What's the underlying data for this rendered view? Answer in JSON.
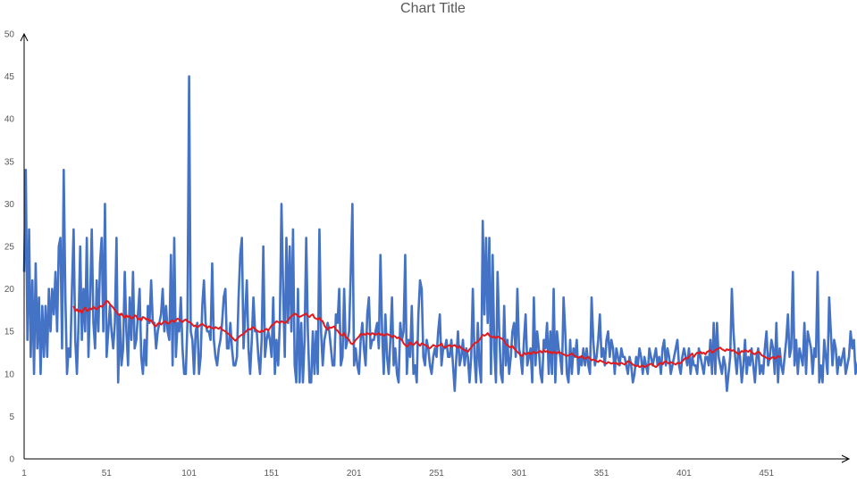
{
  "chart_data": {
    "type": "line",
    "title": "Chart Title",
    "xlabel": "",
    "ylabel": "",
    "xlim": [
      1,
      501
    ],
    "ylim": [
      0,
      50
    ],
    "x_ticks": [
      "1",
      "51",
      "101",
      "151",
      "201",
      "251",
      "301",
      "351",
      "401",
      "451"
    ],
    "y_ticks": [
      "0",
      "5",
      "10",
      "15",
      "20",
      "25",
      "30",
      "35",
      "40",
      "45",
      "50"
    ],
    "grid": false,
    "legend": "none",
    "colors": {
      "series": "#4472C4",
      "trend": "#E31A1C",
      "axis": "#000000",
      "text": "#595959"
    },
    "series": [
      {
        "values": [
          22,
          34,
          14,
          27,
          12,
          21,
          10,
          23,
          13,
          19,
          10,
          18,
          12,
          18,
          12,
          20,
          15,
          20,
          17,
          22,
          15,
          25,
          26,
          13,
          34,
          19,
          10,
          13,
          12,
          20,
          27,
          14,
          10,
          16,
          25,
          14,
          20,
          15,
          26,
          12,
          19,
          27,
          16,
          13,
          21,
          15,
          23,
          26,
          15,
          30,
          12,
          15,
          18,
          15,
          13,
          16,
          26,
          9,
          17,
          11,
          13,
          22,
          15,
          11,
          19,
          14,
          22,
          13,
          14,
          17,
          20,
          12,
          10,
          14,
          11,
          18,
          16,
          21,
          16,
          16,
          13,
          15,
          16,
          17,
          20,
          15,
          18,
          15,
          14,
          24,
          11,
          26,
          12,
          16,
          15,
          19,
          13,
          10,
          10,
          16,
          45,
          15,
          14,
          10,
          15,
          16,
          10,
          12,
          18,
          21,
          16,
          15,
          15,
          14,
          23,
          14,
          12,
          11,
          13,
          14,
          16,
          19,
          20,
          13,
          13,
          16,
          13,
          11,
          11,
          12,
          19,
          24,
          26,
          13,
          17,
          21,
          13,
          10,
          14,
          19,
          15,
          15,
          12,
          10,
          14,
          25,
          12,
          14,
          15,
          14,
          12,
          19,
          10,
          14,
          11,
          16,
          30,
          20,
          12,
          26,
          16,
          25,
          15,
          27,
          11,
          9,
          20,
          9,
          16,
          9,
          14,
          26,
          15,
          9,
          9,
          15,
          10,
          15,
          10,
          27,
          15,
          11,
          14,
          15,
          16,
          15,
          13,
          11,
          11,
          17,
          16,
          20,
          11,
          12,
          20,
          13,
          14,
          15,
          22,
          30,
          11,
          13,
          11,
          10,
          14,
          16,
          13,
          11,
          17,
          19,
          13,
          14,
          14,
          15,
          16,
          13,
          24,
          15,
          10,
          17,
          12,
          10,
          14,
          19,
          11,
          13,
          10,
          9,
          16,
          14,
          15,
          24,
          10,
          14,
          12,
          18,
          10,
          11,
          9,
          17,
          21,
          20,
          12,
          11,
          14,
          13,
          11,
          10,
          12,
          13,
          12,
          15,
          17,
          11,
          13,
          13,
          14,
          12,
          12,
          14,
          11,
          8,
          12,
          15,
          11,
          12,
          14,
          11,
          13,
          12,
          9,
          12,
          20,
          12,
          9,
          16,
          11,
          9,
          28,
          17,
          26,
          16,
          26,
          10,
          24,
          13,
          9,
          22,
          15,
          10,
          9,
          18,
          11,
          14,
          10,
          12,
          15,
          16,
          12,
          20,
          13,
          12,
          10,
          14,
          17,
          11,
          12,
          13,
          9,
          19,
          11,
          15,
          13,
          10,
          9,
          14,
          13,
          16,
          10,
          15,
          10,
          20,
          9,
          15,
          13,
          12,
          10,
          19,
          15,
          10,
          9,
          14,
          10,
          13,
          12,
          14,
          10,
          12,
          11,
          13,
          11,
          13,
          11,
          10,
          19,
          14,
          11,
          12,
          14,
          17,
          12,
          13,
          11,
          14,
          15,
          12,
          14,
          13,
          10,
          13,
          12,
          11,
          13,
          12,
          12,
          11,
          10,
          12,
          11,
          9,
          10,
          12,
          11,
          13,
          12,
          10,
          12,
          11,
          10,
          13,
          12,
          11,
          12,
          13,
          11,
          12,
          10,
          13,
          14,
          11,
          13,
          12,
          10,
          11,
          12,
          13,
          14,
          11,
          10,
          12,
          13,
          12,
          11,
          13,
          10,
          12,
          11,
          11,
          10,
          13,
          12,
          11,
          10,
          12,
          12,
          11,
          14,
          10,
          16,
          10,
          16,
          12,
          11,
          10,
          12,
          11,
          8,
          10,
          12,
          20,
          15,
          12,
          10,
          13,
          12,
          9,
          11,
          14,
          10,
          12,
          11,
          13,
          11,
          9,
          12,
          13,
          10,
          11,
          10,
          13,
          15,
          11,
          12,
          14,
          13,
          10,
          16,
          9,
          13,
          11,
          10,
          12,
          14,
          17,
          12,
          13,
          22,
          11,
          14,
          10,
          13,
          12,
          11,
          16,
          10,
          15,
          14,
          13,
          10,
          13,
          12,
          22,
          9,
          11,
          9,
          14,
          12,
          10,
          19,
          15,
          11,
          14,
          13,
          10,
          12,
          11,
          12,
          13,
          10,
          11,
          12,
          15,
          13,
          14,
          10,
          11,
          12,
          8,
          9,
          14,
          11,
          12,
          10,
          19,
          11,
          12,
          13,
          10,
          13,
          14,
          19,
          12,
          13,
          12,
          14,
          11,
          10,
          15
        ],
        "color": "#4472C4"
      },
      {
        "x_start": 31,
        "values": [
          18,
          17.4,
          17.6,
          17.3,
          17.5,
          17.2,
          17.6,
          17.8,
          17.4,
          17.5,
          17.7,
          17.6,
          17.9,
          17.7,
          17.6,
          17.8,
          18,
          17.9,
          18.1,
          18.3,
          18.6,
          18.5,
          18.2,
          18,
          17.8,
          17.5,
          17.3,
          17,
          16.9,
          17.1,
          16.8,
          16.6,
          16.9,
          16.7,
          16.8,
          16.5,
          16.6,
          16.9,
          16.8,
          16.4,
          16.5,
          16.3,
          16.7,
          16.6,
          16.4,
          16.5,
          16.2,
          16.3,
          16,
          15.7,
          15.6,
          15.9,
          16,
          15.8,
          16,
          16.2,
          16.1,
          15.9,
          16,
          16.2,
          16.3,
          16.1,
          16.3,
          16.5,
          16.4,
          16.2,
          16.1,
          16.3,
          16.4,
          16.2,
          16.1,
          16,
          15.8,
          15.6,
          15.7,
          15.5,
          15.6,
          15.8,
          15.9,
          15.7,
          15.6,
          15.4,
          15.6,
          15.5,
          15.4,
          15.3,
          15.5,
          15.4,
          15.3,
          15.5,
          15.2,
          15.1,
          15,
          14.8,
          14.7,
          14.5,
          14.3,
          14.1,
          13.9,
          14.1,
          14.3,
          14.5,
          14.6,
          14.7,
          14.9,
          15.1,
          15.3,
          15.2,
          15.4,
          15.5,
          15.3,
          15.1,
          15,
          14.9,
          15.1,
          15,
          15.2,
          15.3,
          15.1,
          15.4,
          15.7,
          15.8,
          16,
          16.2,
          16.1,
          16,
          16.2,
          16.1,
          16,
          16.1,
          16.3,
          16.6,
          16.8,
          16.9,
          17.1,
          17,
          16.8,
          16.7,
          16.8,
          16.9,
          17,
          17.1,
          16.8,
          16.7,
          16.9,
          17,
          16.6,
          16.5,
          16.4,
          16.6,
          16.3,
          16.2,
          15.7,
          15.4,
          15.2,
          15.5,
          15.4,
          15.5,
          15.6,
          15.2,
          15.1,
          14.8,
          14.6,
          14.5,
          14.8,
          14.3,
          14.2,
          14,
          13.6,
          13.5,
          13.7,
          14,
          14.2,
          14.4,
          14.7,
          14.6,
          14.7,
          14.6,
          14.8,
          14.7,
          14.6,
          14.8,
          14.7,
          14.6,
          14.7,
          14.8,
          14.6,
          14.7,
          14.5,
          14.6,
          14.7,
          14.6,
          14.5,
          14.3,
          14.5,
          14.4,
          14.2,
          14.3,
          14.1,
          14,
          13.6,
          13.4,
          13.2,
          13.4,
          13.7,
          13.5,
          13.4,
          13.6,
          13.8,
          13.5,
          13.3,
          13.6,
          13.5,
          13.4,
          13.3,
          13.1,
          13,
          13.2,
          13.4,
          13.3,
          13.2,
          13.3,
          13.4,
          13.6,
          13.2,
          13.1,
          13.2,
          13.3,
          13.4,
          13.2,
          13.3,
          13.4,
          13.2,
          13.1,
          13.3,
          13,
          12.9,
          12.8,
          12.7,
          12.6,
          12.9,
          13.1,
          13.4,
          13.6,
          13.7,
          13.8,
          14,
          14.3,
          14.6,
          14.5,
          14.6,
          14.8,
          14.5,
          14.4,
          14.3,
          14.4,
          14.2,
          14.4,
          14.3,
          14.2,
          14.1,
          13.9,
          13.5,
          13.4,
          13.2,
          13.1,
          13.3,
          13,
          12.8,
          12.6,
          12.4,
          12.2,
          12.1,
          12.5,
          12.3,
          12.4,
          12.5,
          12.3,
          12.5,
          12.6,
          12.4,
          12.5,
          12.6,
          12.7,
          12.5,
          12.8,
          12.6,
          12.7,
          12.5,
          12.6,
          12.4,
          12.6,
          12.5,
          12.4,
          12.6,
          12.5,
          12.4,
          12.3,
          12.2,
          12.1,
          12.2,
          12.3,
          12.4,
          12.2,
          12.1,
          12,
          11.9,
          12,
          12.1,
          11.9,
          11.8,
          11.9,
          12,
          11.8,
          11.6,
          11.7,
          11.6,
          11.5,
          11.4,
          11.6,
          11.5,
          11.4,
          11.3,
          11.2,
          11.4,
          11.3,
          11.2,
          11.3,
          11.2,
          11.3,
          11.1,
          11.2,
          11.3,
          11.2,
          11.1,
          11.3,
          11.5,
          11.4,
          11.3,
          11.1,
          11,
          10.9,
          11,
          10.8,
          10.9,
          11,
          10.8,
          10.9,
          11,
          11.1,
          11.2,
          11.1,
          10.9,
          10.8,
          11,
          11.2,
          11.3,
          11.1,
          11.4,
          11.5,
          11.3,
          11.2,
          11.4,
          11.3,
          11.2,
          11.1,
          11.3,
          11.2,
          11.3,
          11.5,
          11.7,
          11.9,
          11.8,
          12,
          12.2,
          12.4,
          12,
          12.3,
          12.5,
          12.4,
          12.6,
          12.4,
          12.5,
          12.3,
          12.6,
          12.7,
          12.8,
          12.5,
          12.6,
          12.8,
          12.9,
          13,
          13.1,
          12.9,
          12.8,
          12.7,
          12.9,
          12.8,
          12.9,
          12.7,
          12.8,
          12.6,
          12.5,
          12.3,
          12.5,
          12.7,
          12.6,
          12.8,
          12.7,
          12.6,
          12.8,
          12.5,
          12.4,
          12.3,
          12.5,
          12.6,
          12.5,
          12.2,
          12.1,
          12,
          11.9,
          11.8,
          11.7,
          11.9,
          12,
          11.8,
          11.9,
          12.1,
          12,
          12
        ],
        "color": "#E31A1C"
      }
    ]
  }
}
